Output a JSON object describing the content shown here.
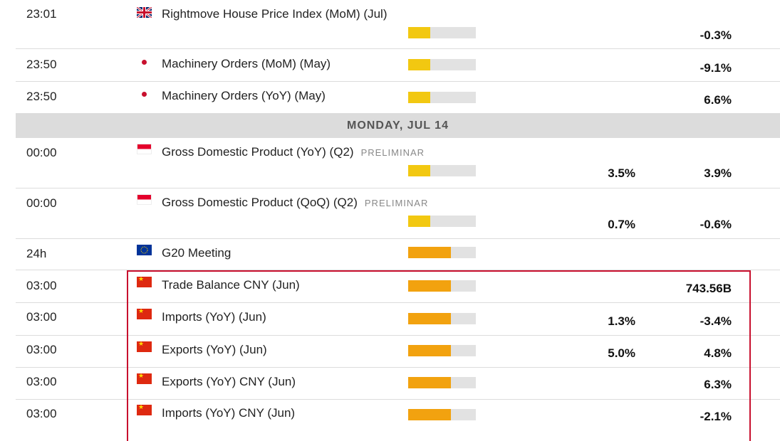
{
  "colors": {
    "low_impact": "#f2c811",
    "high_impact": "#f2a20f",
    "highlight_border": "#c8102e",
    "section_bg": "#dcdcdc"
  },
  "section": {
    "label": "MONDAY, JUL 14"
  },
  "events": [
    {
      "time": "23:01",
      "flag": "flag-gb-icon",
      "name": "Rightmove House Price Index (MoM) (Jul)",
      "tag": "",
      "impact": 1,
      "forecast": "",
      "previous": "-0.3%"
    },
    {
      "time": "23:50",
      "flag": "flag-jp-icon",
      "name": "Machinery Orders (MoM) (May)",
      "tag": "",
      "impact": 1,
      "forecast": "",
      "previous": "-9.1%"
    },
    {
      "time": "23:50",
      "flag": "flag-jp-icon",
      "name": "Machinery Orders (YoY) (May)",
      "tag": "",
      "impact": 1,
      "forecast": "",
      "previous": "6.6%"
    },
    {
      "time": "00:00",
      "flag": "flag-sg-icon",
      "name": "Gross Domestic Product (YoY) (Q2)",
      "tag": "PRELIMINAR",
      "impact": 1,
      "forecast": "3.5%",
      "previous": "3.9%"
    },
    {
      "time": "00:00",
      "flag": "flag-sg-icon",
      "name": "Gross Domestic Product (QoQ) (Q2)",
      "tag": "PRELIMINAR",
      "impact": 1,
      "forecast": "0.7%",
      "previous": "-0.6%"
    },
    {
      "time": "24h",
      "flag": "flag-eu-icon",
      "name": "G20 Meeting",
      "tag": "",
      "impact": 2,
      "forecast": "",
      "previous": ""
    },
    {
      "time": "03:00",
      "flag": "flag-cn-icon",
      "name": "Trade Balance CNY (Jun)",
      "tag": "",
      "impact": 2,
      "forecast": "",
      "previous": "743.56B"
    },
    {
      "time": "03:00",
      "flag": "flag-cn-icon",
      "name": "Imports (YoY) (Jun)",
      "tag": "",
      "impact": 2,
      "forecast": "1.3%",
      "previous": "-3.4%"
    },
    {
      "time": "03:00",
      "flag": "flag-cn-icon",
      "name": "Exports (YoY) (Jun)",
      "tag": "",
      "impact": 2,
      "forecast": "5.0%",
      "previous": "4.8%"
    },
    {
      "time": "03:00",
      "flag": "flag-cn-icon",
      "name": "Exports (YoY) CNY (Jun)",
      "tag": "",
      "impact": 2,
      "forecast": "",
      "previous": "6.3%"
    },
    {
      "time": "03:00",
      "flag": "flag-cn-icon",
      "name": "Imports (YoY) CNY (Jun)",
      "tag": "",
      "impact": 2,
      "forecast": "",
      "previous": "-2.1%"
    }
  ]
}
